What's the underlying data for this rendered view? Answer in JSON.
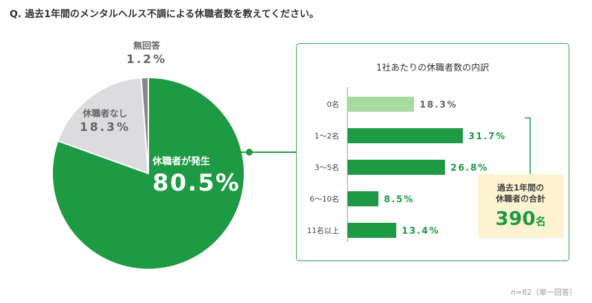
{
  "question": "Q. 過去1年間のメンタルヘルス不調による休職者数を教えてください。",
  "chart_data": [
    {
      "type": "pie",
      "slices": [
        {
          "label": "休職者が発生",
          "value": 80.5,
          "display": "80.5%",
          "color": "#1e9a44"
        },
        {
          "label": "休職者なし",
          "value": 18.3,
          "display": "18.3%",
          "color": "#dcdcdf"
        },
        {
          "label": "無回答",
          "value": 1.2,
          "display": "1.2%",
          "color": "#888888"
        }
      ]
    },
    {
      "type": "bar",
      "orientation": "horizontal",
      "title": "1社あたりの休職者数の内訳",
      "categories": [
        "0名",
        "1〜2名",
        "3〜5名",
        "6〜10名",
        "11名以上"
      ],
      "values": [
        18.3,
        31.7,
        26.8,
        8.5,
        13.4
      ],
      "value_labels": [
        "18.3%",
        "31.7%",
        "26.8%",
        "8.5%",
        "13.4%"
      ],
      "colors": [
        "#a8dba0",
        "#1e9a44",
        "#1e9a44",
        "#1e9a44",
        "#1e9a44"
      ],
      "label_colors": [
        "#666666",
        "#1e9a44",
        "#1e9a44",
        "#1e9a44",
        "#1e9a44"
      ]
    }
  ],
  "total": {
    "line1": "過去1年間の",
    "line2": "休職者の合計",
    "number": "390",
    "unit": "名"
  },
  "note": "n=82（単一回答）"
}
